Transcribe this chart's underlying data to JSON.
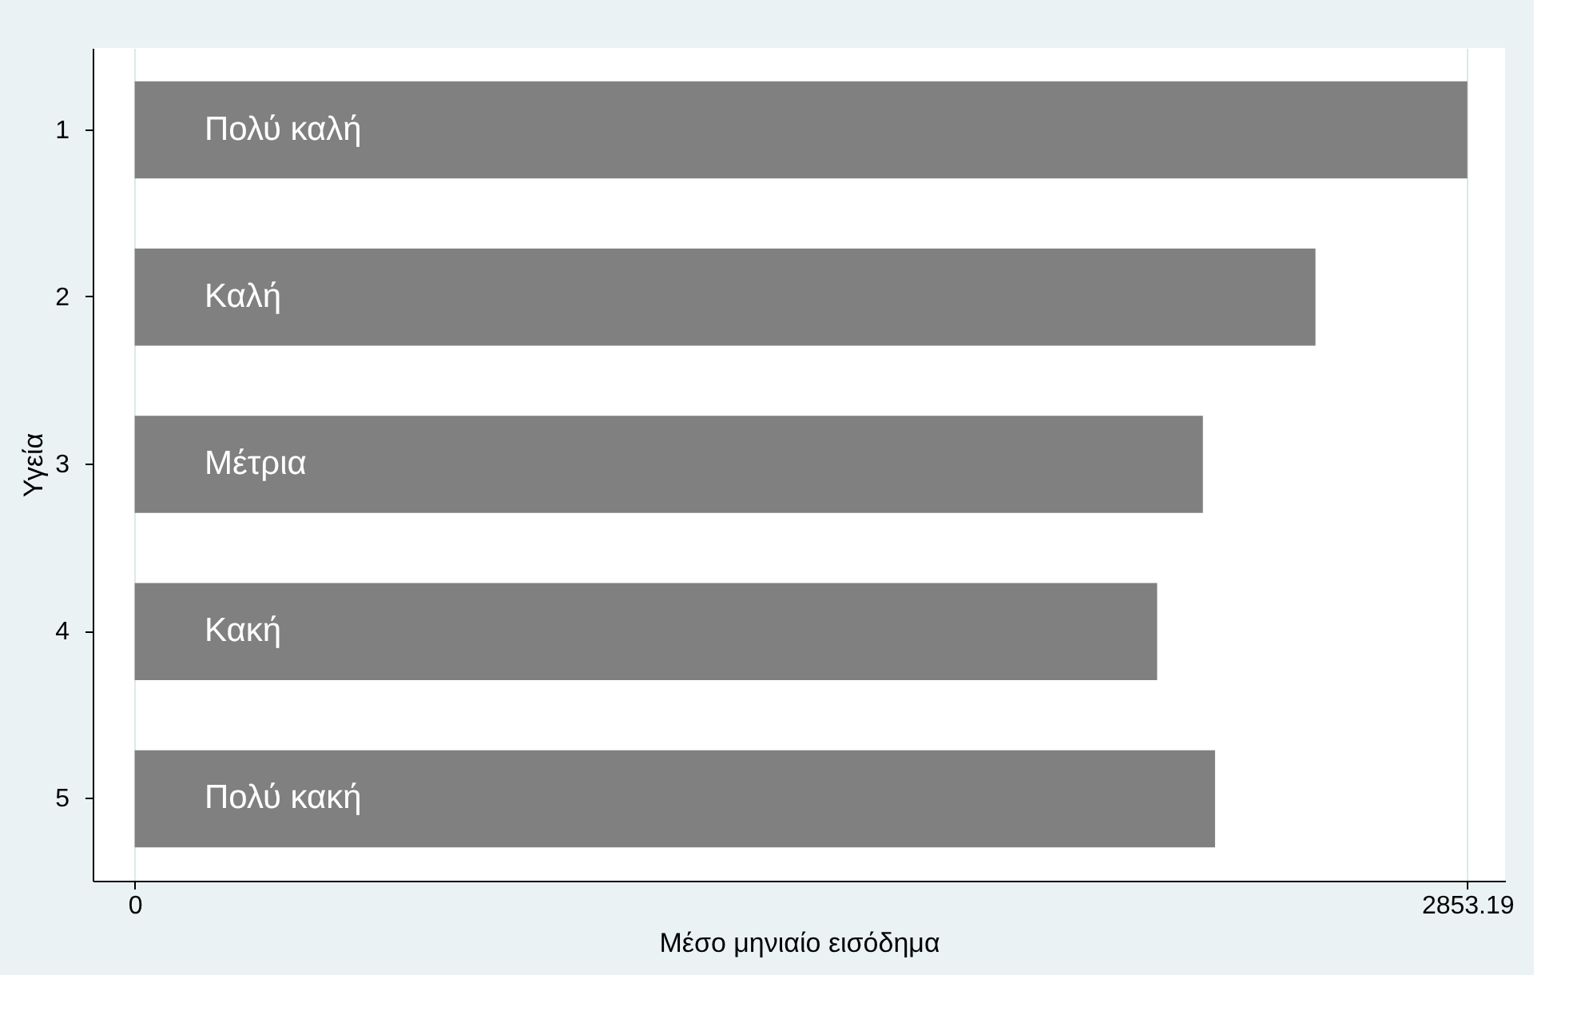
{
  "chart_data": {
    "type": "bar",
    "orientation": "horizontal",
    "categories": [
      "1",
      "2",
      "3",
      "4",
      "5"
    ],
    "values": [
      2853.19,
      2528,
      2287,
      2189,
      2313
    ],
    "color": "#808080",
    "xlim": [
      -90,
      2934
    ],
    "xticks": [
      0,
      2853.19
    ],
    "xlabel": "Μέσο μηνιαίο εισόδημα",
    "ylabel": "Υγεία",
    "grid": "x",
    "annotations": [
      "Πολύ καλή",
      "Καλή",
      "Μέτρια",
      "Κακή",
      "Πολύ κακή"
    ]
  }
}
